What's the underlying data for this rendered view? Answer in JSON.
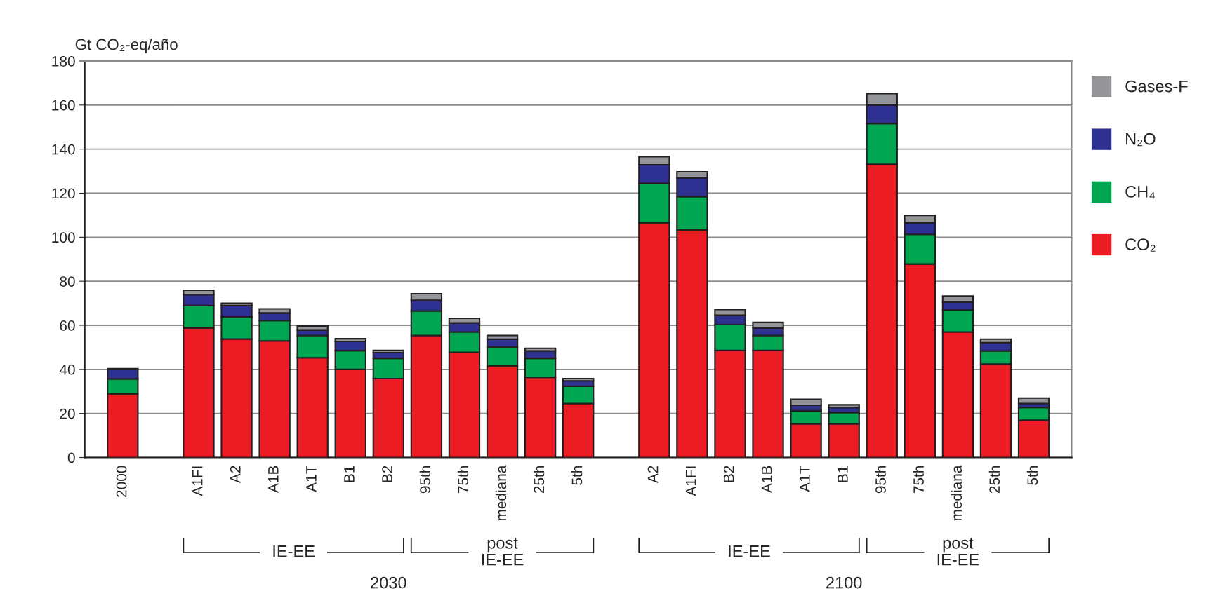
{
  "chart_data": {
    "type": "bar",
    "stacked": true,
    "ylabel": "Gt CO₂-eq/año",
    "categories": [
      "2000",
      null,
      "A1FI",
      "A2",
      "A1B",
      "A1T",
      "B1",
      "B2",
      "95th",
      "75th",
      "mediana",
      "25th",
      "5th",
      null,
      "A2",
      "A1FI",
      "B2",
      "A1B",
      "A1T",
      "B1",
      "95th",
      "75th",
      "mediana",
      "25th",
      "5th"
    ],
    "series": [
      {
        "name": "CO₂",
        "color": "#ec1c24",
        "values": [
          28.9,
          null,
          58.8,
          53.8,
          52.9,
          45.3,
          40.0,
          35.8,
          55.4,
          47.7,
          41.6,
          36.4,
          24.5,
          null,
          106.6,
          103.3,
          48.6,
          48.6,
          15.3,
          15.3,
          133.1,
          87.8,
          57.0,
          42.4,
          16.9
        ]
      },
      {
        "name": "CH₄",
        "color": "#00a651",
        "values": [
          6.8,
          null,
          10.2,
          10.0,
          9.3,
          10.1,
          8.5,
          9.2,
          11.1,
          9.3,
          8.6,
          8.6,
          7.8,
          null,
          17.9,
          15.1,
          11.7,
          6.8,
          5.9,
          5.1,
          18.5,
          13.5,
          10.1,
          6.0,
          5.8
        ]
      },
      {
        "name": "N₂O",
        "color": "#2e3192",
        "values": [
          4.3,
          null,
          4.9,
          5.2,
          3.4,
          2.5,
          4.2,
          2.6,
          4.9,
          4.1,
          3.5,
          3.4,
          2.5,
          null,
          8.4,
          8.5,
          4.3,
          3.4,
          2.5,
          2.3,
          8.4,
          5.3,
          3.5,
          3.7,
          1.8
        ]
      },
      {
        "name": "Gases-F",
        "color": "#939598",
        "values": [
          0.3,
          null,
          2.0,
          1.0,
          1.9,
          1.8,
          1.2,
          1.0,
          2.9,
          2.1,
          1.7,
          1.2,
          1.0,
          null,
          3.7,
          2.8,
          2.6,
          2.5,
          2.7,
          1.2,
          5.2,
          3.3,
          2.7,
          1.6,
          2.5
        ]
      }
    ],
    "ylim": [
      0,
      180
    ],
    "yticks": [
      0,
      20,
      40,
      60,
      80,
      100,
      120,
      140,
      160,
      180
    ],
    "grid": "y",
    "legend": "right",
    "annotations": [
      "IE-EE",
      "post\nIE-EE",
      "2030",
      "IE-EE",
      "post\nIE-EE",
      "2100"
    ]
  }
}
